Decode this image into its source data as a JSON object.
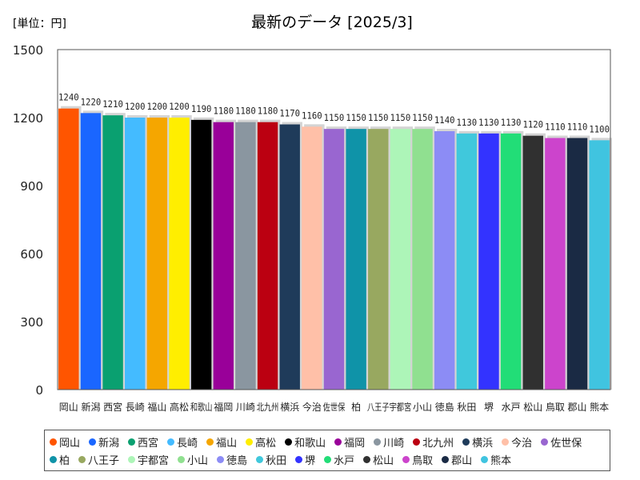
{
  "chart_data": {
    "type": "bar",
    "title": "最新のデータ [2025/3]",
    "unit_label": "[単位：円]",
    "ylim": [
      0,
      1500
    ],
    "yticks": [
      0,
      300,
      600,
      900,
      1200,
      1500
    ],
    "grid": false,
    "legend_position": "bottom",
    "categories": [
      "岡山",
      "新潟",
      "西宮",
      "長崎",
      "福山",
      "高松",
      "和歌山",
      "福岡",
      "川崎",
      "北九州",
      "横浜",
      "今治",
      "佐世保",
      "柏",
      "八王子",
      "宇都宮",
      "小山",
      "徳島",
      "秋田",
      "堺",
      "水戸",
      "松山",
      "鳥取",
      "郡山",
      "熊本"
    ],
    "values": [
      1240,
      1220,
      1210,
      1200,
      1200,
      1200,
      1190,
      1180,
      1180,
      1180,
      1170,
      1160,
      1150,
      1150,
      1150,
      1150,
      1150,
      1140,
      1130,
      1130,
      1130,
      1120,
      1110,
      1110,
      1100
    ],
    "colors": [
      "#ff5500",
      "#1a66ff",
      "#0aa070",
      "#44bbff",
      "#f5a600",
      "#ffee00",
      "#000000",
      "#990099",
      "#8a96a0",
      "#bb0011",
      "#1f3b5a",
      "#ffc0a8",
      "#9966d0",
      "#0f93a8",
      "#98a860",
      "#adf5b8",
      "#90e090",
      "#8c8cf5",
      "#40c8dc",
      "#3333ff",
      "#22dd77",
      "#303030",
      "#cc44cc",
      "#1a2a44",
      "#40c4e0"
    ]
  }
}
